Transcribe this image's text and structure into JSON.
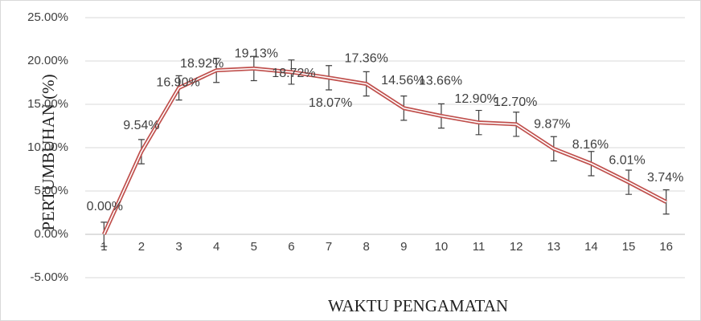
{
  "chart_data": {
    "type": "line",
    "categories": [
      "1",
      "2",
      "3",
      "4",
      "5",
      "6",
      "7",
      "8",
      "9",
      "10",
      "11",
      "12",
      "13",
      "14",
      "15",
      "16"
    ],
    "series": [
      {
        "color": "#c0504d",
        "values": [
          0.0,
          9.54,
          16.9,
          18.92,
          19.13,
          18.72,
          18.07,
          17.36,
          14.56,
          13.66,
          12.9,
          12.7,
          9.87,
          8.16,
          6.01,
          3.74
        ],
        "value_labels": [
          "0.00%",
          "9.54%",
          "16.90%",
          "18.92%",
          "19.13%",
          "18.72%",
          "18.07%",
          "17.36%",
          "14.56%",
          "13.66%",
          "12.90%",
          "12.70%",
          "9.87%",
          "8.16%",
          "6.01%",
          "3.74%"
        ],
        "errors": [
          1.4,
          1.4,
          1.4,
          1.4,
          1.4,
          1.4,
          1.4,
          1.4,
          1.4,
          1.4,
          1.4,
          1.4,
          1.4,
          1.4,
          1.4,
          1.4
        ]
      }
    ],
    "ylim": [
      -5,
      25
    ],
    "yticks": [
      {
        "value": -5,
        "label": "-5.00%"
      },
      {
        "value": 0,
        "label": "0.00%"
      },
      {
        "value": 5,
        "label": "5.00%"
      },
      {
        "value": 10,
        "label": "10.00%"
      },
      {
        "value": 15,
        "label": "15.00%"
      },
      {
        "value": 20,
        "label": "20.00%"
      },
      {
        "value": 25,
        "label": "25.00%"
      }
    ],
    "grid": true,
    "xlabel": "WAKTU PENGAMATAN",
    "ylabel": "PERTUMBUHAN (%)"
  }
}
